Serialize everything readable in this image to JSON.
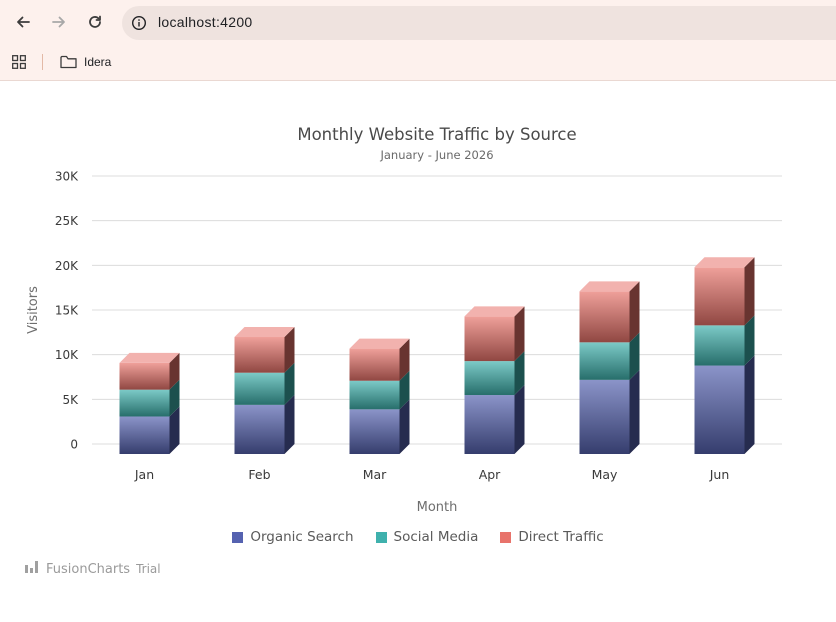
{
  "browser": {
    "url": "localhost:4200",
    "bookmark_label": "Idera",
    "icons": [
      "back-arrow-icon",
      "forward-arrow-icon",
      "reload-icon",
      "site-info-icon",
      "apps-grid-icon",
      "folder-icon"
    ]
  },
  "chart_data": {
    "type": "bar",
    "stacked": true,
    "title": "Monthly Website Traffic by Source",
    "subtitle": "January - June 2026",
    "xlabel": "Month",
    "ylabel": "Visitors",
    "categories": [
      "Jan",
      "Feb",
      "Mar",
      "Apr",
      "May",
      "Jun"
    ],
    "y_ticks": [
      "0",
      "5K",
      "10K",
      "15K",
      "20K",
      "25K",
      "30K"
    ],
    "ylim": [
      0,
      30000
    ],
    "grid": true,
    "legend_position": "bottom",
    "series": [
      {
        "name": "Organic Search",
        "color": "#5562b0",
        "values": [
          4200,
          5500,
          5000,
          6600,
          8300,
          9900
        ]
      },
      {
        "name": "Social Media",
        "color": "#3fb1ad",
        "values": [
          3000,
          3600,
          3200,
          3800,
          4200,
          4500
        ]
      },
      {
        "name": "Direct Traffic",
        "color": "#e8736b",
        "values": [
          3000,
          4000,
          3600,
          5000,
          5700,
          6500
        ]
      }
    ]
  },
  "watermark": {
    "brand": "FusionCharts",
    "suffix": "Trial"
  }
}
